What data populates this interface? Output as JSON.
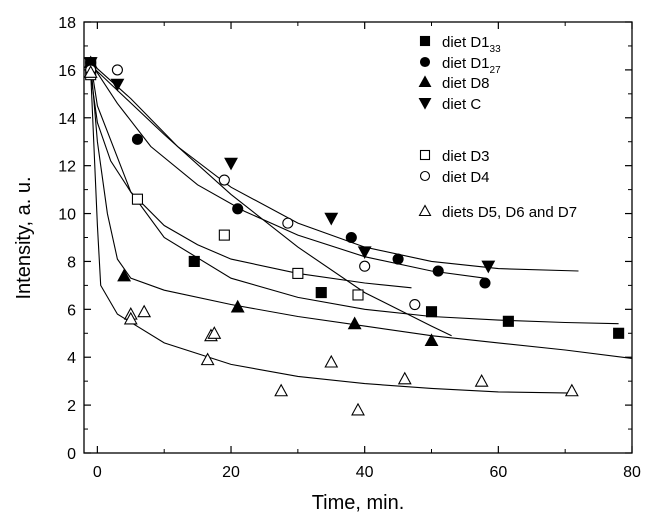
{
  "chart_data": {
    "type": "scatter",
    "xlabel": "Time, min.",
    "ylabel": "Intensity, a. u.",
    "xlim": [
      -2,
      80
    ],
    "ylim": [
      0,
      18
    ],
    "x_ticks": [
      0,
      20,
      40,
      60,
      80
    ],
    "y_ticks": [
      0,
      2,
      4,
      6,
      8,
      10,
      12,
      14,
      16,
      18
    ],
    "legend_position": "top-right",
    "series": [
      {
        "name": "diet D1",
        "subscript": "33",
        "marker": "square-filled",
        "points": [
          [
            -1,
            16.3
          ],
          [
            14.5,
            8.0
          ],
          [
            33.5,
            6.7
          ],
          [
            50,
            5.9
          ],
          [
            61.5,
            5.5
          ],
          [
            78,
            5.0
          ]
        ],
        "fit": [
          [
            -1,
            16.3
          ],
          [
            0,
            14.5
          ],
          [
            5,
            10.9
          ],
          [
            10,
            9.0
          ],
          [
            20,
            7.3
          ],
          [
            30,
            6.5
          ],
          [
            40,
            6.0
          ],
          [
            50,
            5.7
          ],
          [
            60,
            5.55
          ],
          [
            70,
            5.45
          ],
          [
            78,
            5.4
          ]
        ]
      },
      {
        "name": "diet D1",
        "subscript": "27",
        "marker": "circle-filled",
        "points": [
          [
            -1,
            16.3
          ],
          [
            6,
            13.1
          ],
          [
            21,
            10.2
          ],
          [
            38,
            9.0
          ],
          [
            45,
            8.1
          ],
          [
            51,
            7.6
          ],
          [
            58,
            7.1
          ]
        ],
        "fit": [
          [
            -1,
            16.3
          ],
          [
            3,
            14.6
          ],
          [
            8,
            12.8
          ],
          [
            15,
            11.2
          ],
          [
            22,
            10.1
          ],
          [
            30,
            9.1
          ],
          [
            40,
            8.2
          ],
          [
            50,
            7.6
          ],
          [
            58,
            7.3
          ]
        ]
      },
      {
        "name": "diet D8",
        "marker": "triangle-up-filled",
        "points": [
          [
            -1,
            16.3
          ],
          [
            4,
            7.4
          ],
          [
            21,
            6.1
          ],
          [
            38.5,
            5.4
          ],
          [
            50,
            4.7
          ]
        ],
        "fit": [
          [
            -1,
            16.3
          ],
          [
            0,
            13.0
          ],
          [
            1.5,
            10.0
          ],
          [
            3,
            8.1
          ],
          [
            5,
            7.3
          ],
          [
            10,
            6.8
          ],
          [
            20,
            6.2
          ],
          [
            30,
            5.7
          ],
          [
            40,
            5.3
          ],
          [
            50,
            4.9
          ],
          [
            60,
            4.6
          ],
          [
            70,
            4.3
          ],
          [
            80,
            3.95
          ]
        ]
      },
      {
        "name": "diet C",
        "marker": "triangle-down-filled",
        "points": [
          [
            -1,
            16.3
          ],
          [
            3,
            15.4
          ],
          [
            20,
            12.1
          ],
          [
            35,
            9.8
          ],
          [
            40,
            8.4
          ],
          [
            58.5,
            7.8
          ]
        ],
        "fit": [
          [
            -1,
            16.3
          ],
          [
            5,
            14.8
          ],
          [
            12,
            12.8
          ],
          [
            20,
            11.1
          ],
          [
            30,
            9.6
          ],
          [
            40,
            8.6
          ],
          [
            50,
            8.0
          ],
          [
            60,
            7.7
          ],
          [
            72,
            7.6
          ]
        ]
      },
      {
        "name": "diet D3",
        "marker": "square-open",
        "points": [
          [
            -1,
            15.8
          ],
          [
            6,
            10.6
          ],
          [
            19,
            9.1
          ],
          [
            30,
            7.5
          ],
          [
            39,
            6.6
          ]
        ],
        "fit": [
          [
            -1,
            15.8
          ],
          [
            0,
            13.8
          ],
          [
            2,
            12.2
          ],
          [
            5,
            10.9
          ],
          [
            10,
            9.5
          ],
          [
            15,
            8.7
          ],
          [
            20,
            8.1
          ],
          [
            30,
            7.5
          ],
          [
            40,
            7.1
          ],
          [
            47,
            6.9
          ]
        ]
      },
      {
        "name": "diet D4",
        "marker": "circle-open",
        "points": [
          [
            -1,
            16.0
          ],
          [
            3,
            16.0
          ],
          [
            19,
            11.4
          ],
          [
            28.5,
            9.6
          ],
          [
            40,
            7.8
          ],
          [
            47.5,
            6.2
          ]
        ],
        "fit": [
          [
            -1,
            16.2
          ],
          [
            10,
            13.3
          ],
          [
            20,
            10.8
          ],
          [
            30,
            8.6
          ],
          [
            40,
            6.7
          ],
          [
            50,
            5.3
          ],
          [
            53,
            4.9
          ]
        ]
      },
      {
        "name": "diets D5, D6 and D7",
        "marker": "triangle-up-open",
        "points": [
          [
            -1,
            15.9
          ],
          [
            5,
            5.8
          ],
          [
            5,
            5.6
          ],
          [
            7,
            5.9
          ],
          [
            16.5,
            3.9
          ],
          [
            17,
            4.9
          ],
          [
            17.5,
            5.0
          ],
          [
            27.5,
            2.6
          ],
          [
            35,
            3.8
          ],
          [
            39,
            1.8
          ],
          [
            46,
            3.1
          ],
          [
            57.5,
            3.0
          ],
          [
            71,
            2.6
          ]
        ],
        "fit": [
          [
            -1,
            15.9
          ],
          [
            0,
            9.5
          ],
          [
            0.5,
            7.0
          ],
          [
            3,
            5.8
          ],
          [
            10,
            4.6
          ],
          [
            20,
            3.7
          ],
          [
            30,
            3.2
          ],
          [
            40,
            2.9
          ],
          [
            50,
            2.7
          ],
          [
            60,
            2.55
          ],
          [
            71,
            2.5
          ]
        ]
      }
    ]
  }
}
